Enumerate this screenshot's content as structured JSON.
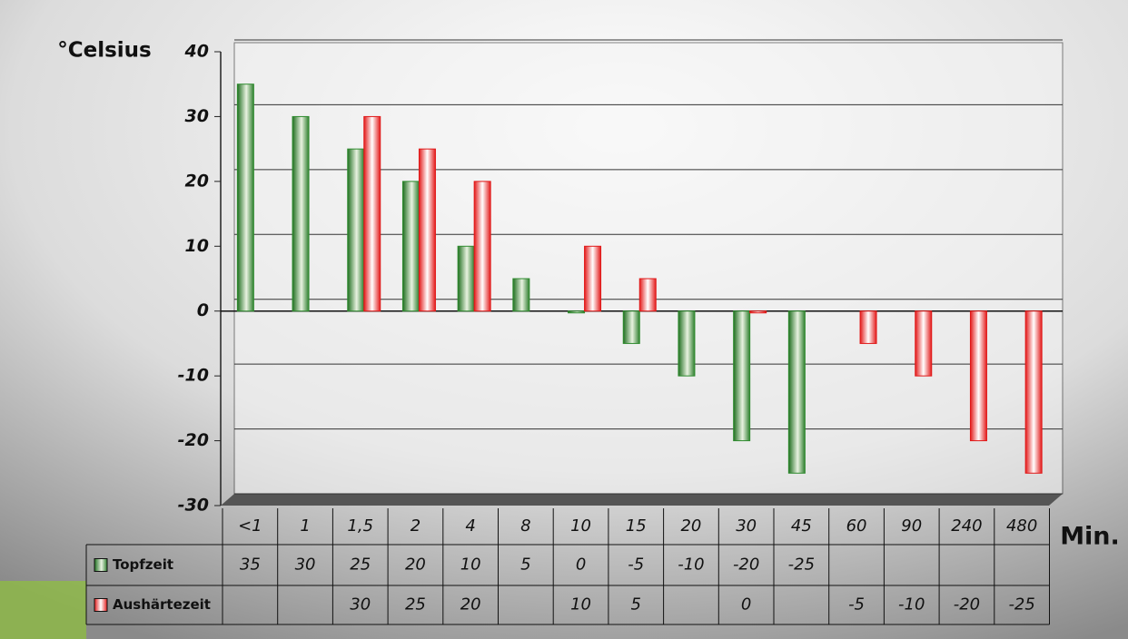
{
  "chart_data": {
    "type": "bar",
    "y_label": "°Celsius",
    "x_label": "Min.",
    "categories": [
      "<1",
      "1",
      "1,5",
      "2",
      "4",
      "8",
      "10",
      "15",
      "20",
      "30",
      "45",
      "60",
      "90",
      "240",
      "480"
    ],
    "series": [
      {
        "name": "Topfzeit",
        "color": "#2e8b2e",
        "values": [
          35,
          30,
          25,
          20,
          10,
          5,
          0,
          -5,
          -10,
          -20,
          -25,
          null,
          null,
          null,
          null
        ]
      },
      {
        "name": "Aushärtezeit",
        "color": "#e01818",
        "values": [
          null,
          null,
          30,
          25,
          20,
          null,
          10,
          5,
          null,
          0,
          null,
          -5,
          -10,
          -20,
          -25
        ]
      }
    ],
    "ylim": [
      -30,
      40
    ],
    "yticks": [
      -30,
      -20,
      -10,
      0,
      10,
      20,
      30,
      40
    ],
    "grid": true
  }
}
